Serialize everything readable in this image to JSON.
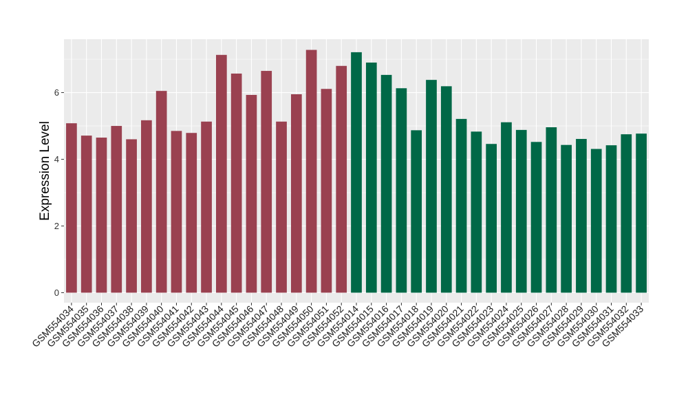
{
  "chart_data": {
    "type": "bar",
    "title": "",
    "xlabel": "",
    "ylabel": "Expression Level",
    "ylim": [
      -0.3,
      7.6
    ],
    "yticks": [
      0,
      2,
      4,
      6
    ],
    "grid": true,
    "legend": "none",
    "panel_background": "#ebebeb",
    "grid_color": "#ffffff",
    "categories": [
      "GSM554034",
      "GSM554035",
      "GSM554036",
      "GSM554037",
      "GSM554038",
      "GSM554039",
      "GSM554040",
      "GSM554041",
      "GSM554042",
      "GSM554043",
      "GSM554044",
      "GSM554045",
      "GSM554046",
      "GSM554047",
      "GSM554048",
      "GSM554049",
      "GSM554050",
      "GSM554051",
      "GSM554052",
      "GSM554014",
      "GSM554015",
      "GSM554016",
      "GSM554017",
      "GSM554018",
      "GSM554019",
      "GSM554020",
      "GSM554021",
      "GSM554022",
      "GSM554023",
      "GSM554024",
      "GSM554025",
      "GSM554026",
      "GSM554027",
      "GSM554028",
      "GSM554029",
      "GSM554030",
      "GSM554031",
      "GSM554032",
      "GSM554033"
    ],
    "values": [
      5.08,
      4.71,
      4.65,
      5.0,
      4.6,
      5.17,
      6.05,
      4.85,
      4.79,
      5.13,
      7.13,
      6.57,
      5.93,
      6.65,
      5.13,
      5.95,
      7.28,
      6.11,
      6.8,
      7.21,
      6.9,
      6.53,
      6.13,
      4.87,
      6.38,
      6.19,
      5.21,
      4.83,
      4.46,
      5.11,
      4.88,
      4.52,
      4.96,
      4.43,
      4.61,
      4.31,
      4.42,
      4.75,
      4.77
    ],
    "groups": [
      {
        "color": "#9a4150",
        "count": 19
      },
      {
        "color": "#006847",
        "count": 20
      }
    ]
  }
}
